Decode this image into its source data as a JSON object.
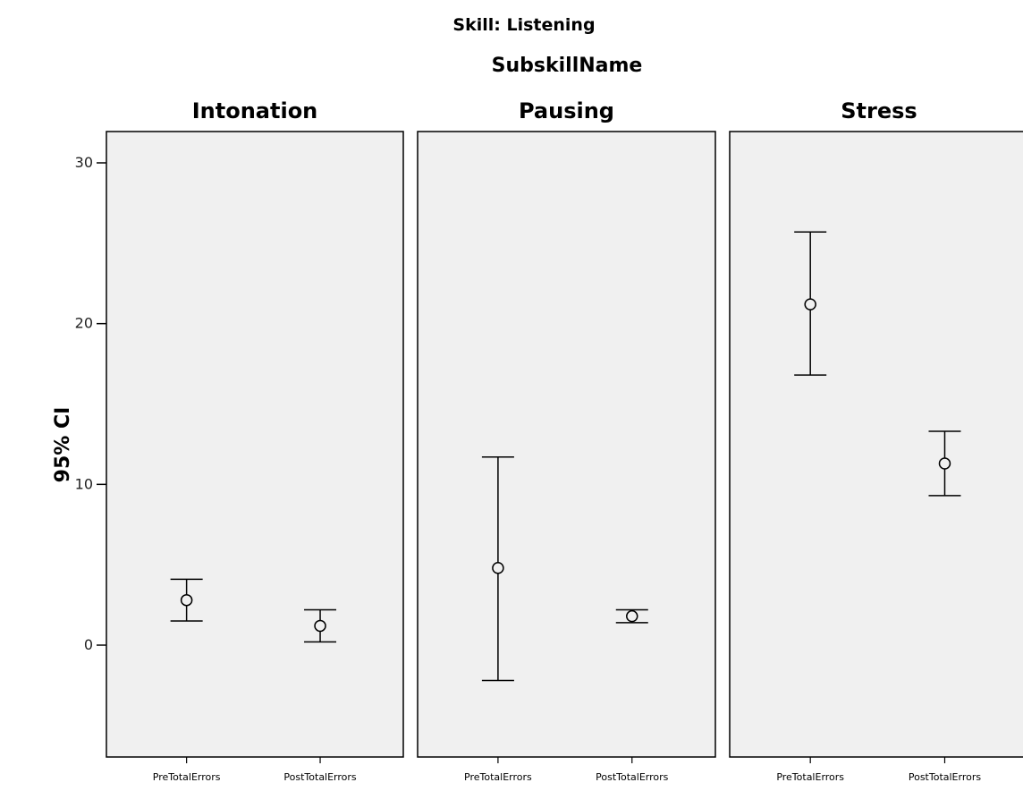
{
  "chart_data": {
    "type": "errorbar",
    "skill_title": "Skill: Listening",
    "panel_variable": "SubskillName",
    "ylabel": "95% CI",
    "ylim": [
      -7,
      32
    ],
    "yticks": [
      0,
      10,
      20,
      30
    ],
    "categories": [
      "PreTotalErrors",
      "PostTotalErrors"
    ],
    "panels": [
      {
        "name": "Intonation",
        "points": [
          {
            "category": "PreTotalErrors",
            "mean": 2.8,
            "lower": 1.5,
            "upper": 4.1
          },
          {
            "category": "PostTotalErrors",
            "mean": 1.2,
            "lower": 0.2,
            "upper": 2.2
          }
        ]
      },
      {
        "name": "Pausing",
        "points": [
          {
            "category": "PreTotalErrors",
            "mean": 4.8,
            "lower": -2.2,
            "upper": 11.7
          },
          {
            "category": "PostTotalErrors",
            "mean": 1.8,
            "lower": 1.4,
            "upper": 2.2
          }
        ]
      },
      {
        "name": "Stress",
        "points": [
          {
            "category": "PreTotalErrors",
            "mean": 21.2,
            "lower": 16.8,
            "upper": 25.7
          },
          {
            "category": "PostTotalErrors",
            "mean": 11.3,
            "lower": 9.3,
            "upper": 13.3
          }
        ]
      }
    ],
    "grid": false,
    "colors": {
      "panel_bg": "#f0f0f0",
      "frame": "#000000",
      "marks": "#000000"
    }
  }
}
